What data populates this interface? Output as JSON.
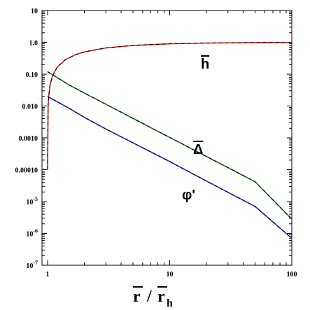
{
  "chart_data": {
    "type": "line",
    "x_scale": "log",
    "y_scale": "log",
    "xlim": [
      0.9,
      100
    ],
    "ylim": [
      1e-07,
      10
    ],
    "x_ticks": [
      {
        "value": 1,
        "label": "1"
      },
      {
        "value": 10,
        "label": "10"
      },
      {
        "value": 100,
        "label": "100"
      }
    ],
    "y_ticks": [
      {
        "value": 10,
        "label": "10"
      },
      {
        "value": 1,
        "label": "1.0"
      },
      {
        "value": 0.1,
        "label": "0.10"
      },
      {
        "value": 0.01,
        "label": "0.010"
      },
      {
        "value": 0.001,
        "label": "0.0010"
      },
      {
        "value": 0.0001,
        "label": "0.00010"
      },
      {
        "value": 1e-05,
        "label": "10",
        "exp": "-5"
      },
      {
        "value": 1e-06,
        "label": "10",
        "exp": "-6"
      },
      {
        "value": 1e-07,
        "label": "10",
        "exp": "-7"
      }
    ],
    "xlabel": {
      "r": "r",
      "slash": "/",
      "r2": "r",
      "sub": "h"
    },
    "ylabel": "",
    "grid": false,
    "series": [
      {
        "name": "h",
        "label": "h",
        "overbar": true,
        "color": "#e0201a",
        "overlay_color": "#000000",
        "x": [
          1.0,
          1.01,
          1.02,
          1.05,
          1.1,
          1.2,
          1.4,
          1.7,
          2,
          3,
          5,
          10,
          20,
          50,
          100
        ],
        "y": [
          0.0001,
          0.0099,
          0.0196,
          0.0476,
          0.0909,
          0.1667,
          0.2857,
          0.4118,
          0.5,
          0.6667,
          0.8,
          0.9,
          0.95,
          0.98,
          0.99
        ]
      },
      {
        "name": "Δ",
        "label": "Δ",
        "overbar": true,
        "color": "#1f7a1f",
        "overlay_color": "#000000",
        "x": [
          1,
          1.5,
          2,
          3,
          5,
          10,
          20,
          50,
          100
        ],
        "y": [
          0.12,
          0.046,
          0.0255,
          0.0114,
          0.0041,
          0.00103,
          0.00026,
          4.2e-05,
          2.8e-06
        ]
      },
      {
        "name": "φ'",
        "label": "φ'",
        "overbar": false,
        "color": "#1c2fd6",
        "overlay_color": "#000000",
        "x": [
          1,
          1.5,
          2,
          3,
          5,
          10,
          20,
          50,
          100
        ],
        "y": [
          0.02,
          0.0085,
          0.0044,
          0.0019,
          0.0007,
          0.00018,
          4.4e-05,
          7e-06,
          7e-07
        ]
      }
    ]
  }
}
